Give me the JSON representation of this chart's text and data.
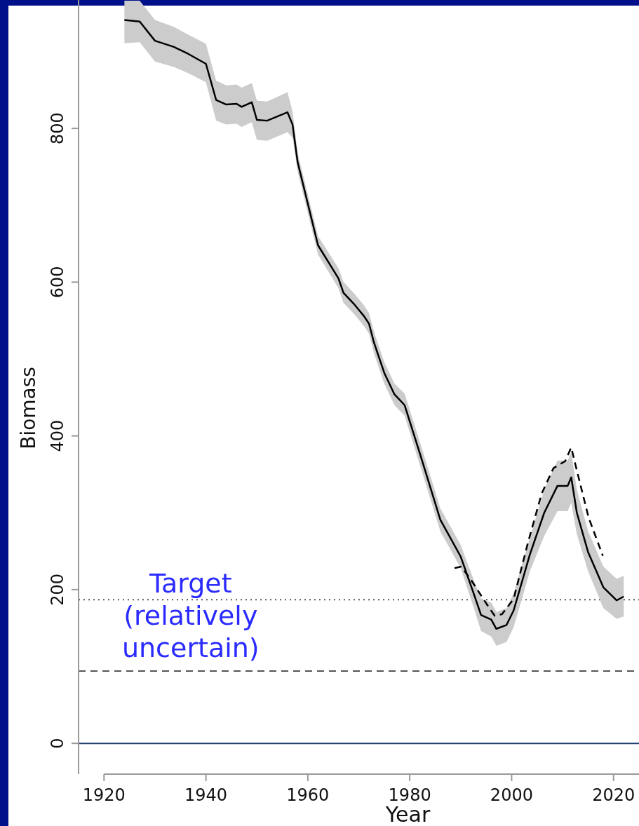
{
  "chart_data": {
    "type": "line",
    "xlabel": "Year",
    "ylabel": "Biomass",
    "xlim": [
      1915,
      2025
    ],
    "ylim": [
      -40,
      967
    ],
    "xticks": [
      1920,
      1940,
      1960,
      1980,
      2000,
      2020
    ],
    "yticks": [
      0,
      200,
      400,
      600,
      800
    ],
    "grid": false,
    "marker": "none",
    "series": [
      {
        "color": "#000000",
        "line_style": "solid",
        "x": [
          1924,
          1927,
          1930,
          1933.7,
          1936.5,
          1940,
          1942,
          1944,
          1946,
          1947,
          1949,
          1950,
          1952,
          1956,
          1957,
          1958,
          1962,
          1966,
          1967,
          1969,
          1971,
          1972,
          1973,
          1975,
          1977,
          1979,
          1982,
          1986,
          1990,
          1992.6,
          1994,
          1996,
          1997,
          1999,
          2000.4,
          2003.6,
          2006.4,
          2009,
          2011,
          2011.7,
          2012.8,
          2015,
          2018,
          2020.6,
          2022
        ],
        "values": [
          941,
          939,
          914,
          906,
          897,
          884,
          837,
          831,
          832,
          828,
          834,
          811,
          810,
          821,
          805,
          756,
          648,
          605,
          586,
          572,
          556,
          546,
          521,
          482,
          454,
          440,
          377,
          291,
          243,
          194,
          167,
          161,
          149,
          154,
          173,
          246,
          300,
          335,
          335,
          346,
          300,
          249,
          203,
          186,
          191
        ],
        "lower": [
          911,
          912,
          887,
          880,
          872,
          860,
          810,
          805,
          806,
          802,
          808,
          785,
          784,
          795,
          788,
          744,
          636,
          592,
          573,
          559,
          543,
          533,
          507,
          468,
          440,
          426,
          362,
          276,
          228,
          176,
          146,
          139,
          127,
          132,
          151,
          224,
          270,
          302,
          302,
          313,
          272,
          224,
          176,
          162,
          165
        ],
        "upper": [
          966,
          966,
          941,
          932,
          922,
          910,
          862,
          856,
          857,
          853,
          859,
          836,
          835,
          847,
          822,
          768,
          660,
          618,
          600,
          586,
          570,
          560,
          535,
          496,
          468,
          455,
          392,
          306,
          258,
          212,
          188,
          183,
          171,
          176,
          195,
          268,
          330,
          368,
          368,
          379,
          330,
          276,
          230,
          214,
          218
        ]
      },
      {
        "color": "#000000",
        "line_style": "dashed",
        "x": [
          1988.8,
          1990.1,
          1992.1,
          1995.8,
          1996.7,
          1998.1,
          2000.4,
          2003.2,
          2005.9,
          2008.2,
          2010.5,
          2011.7,
          2012.8,
          2015.1,
          2017.9
        ],
        "values": [
          228,
          230,
          212,
          174,
          166,
          168,
          188,
          261,
          325,
          358,
          367,
          385,
          355,
          294,
          244
        ]
      }
    ],
    "ref_lines": [
      {
        "axis": "y",
        "value": 187,
        "line_style": "dotted",
        "color": "#555555"
      },
      {
        "axis": "y",
        "value": 94,
        "line_style": "dashed",
        "color": "#555555"
      },
      {
        "axis": "y",
        "value": 0,
        "line_style": "solid",
        "color": "#1f3c6e"
      }
    ],
    "annotations": [
      {
        "text": "Target\n(relatively\nuncertain)",
        "x": 1937,
        "y": 187
      }
    ]
  }
}
